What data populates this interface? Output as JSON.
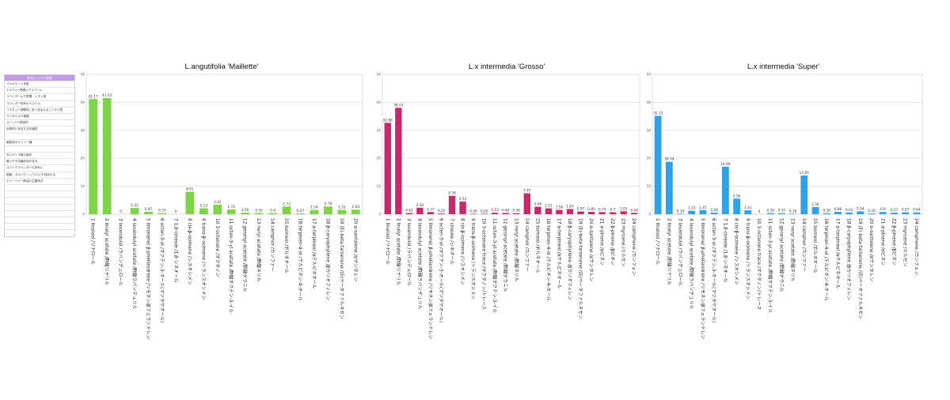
{
  "legend_panel": {
    "header": "成分について説明",
    "rows": [
      "ベルガモット系香",
      "エステル+酢酸+アルコール",
      "ラベンダーより柑橘、レモン香",
      "ラベンダー特有のエステル",
      "リモネン+柑橘系に多く含まれることから柑",
      "マツタケより樹脂",
      "スーッ!!?!感覚的",
      "伝統的に存在する抗菌性",
      "",
      "脂肪族のケトン一種",
      "",
      "甘いローズ様の香気",
      "軽いやや抗菌作用がある",
      "スパイクラベンダーの多めに",
      "樹脂、ガルバナシュワ(?)とも呼ばれる",
      "ティーツリー精油の主要成分",
      "",
      "",
      "",
      "",
      "",
      "",
      "",
      ""
    ]
  },
  "colors": {
    "maillette": "#7ed348",
    "grosso": "#c8286c",
    "super": "#2fa2e8"
  },
  "chart_data": [
    {
      "type": "bar",
      "title": "L.angutifolia 'Maillette'",
      "ylim": [
        0,
        50
      ],
      "yticks": [
        0,
        10,
        20,
        30,
        40,
        50
      ],
      "categories": [
        "1 linalool /リナロール",
        "2 linalyl acetate /酢酸リナリル",
        "3 lavandulol /ラバンデュロール",
        "4 lavandulyl acetate /酢酸ラバンデュリル",
        "5 limonene/ β-phellandrene /リモネン/βフェランドレン",
        "6 octen-3-ol /オクテン-3-オール(マツタケオール)",
        "7 1,8-cineole /1,8-シネオール",
        "8 cis-β-ocimene /シスオシメン",
        "9 trans-β-ocimene /トランスオシメン",
        "10 3-octanone /オクタノン",
        "11 octen-3-yl acetate /酢酸オクテン-3-イル",
        "12 geranyl acetate /酢酸ゲラニル",
        "13 neryl acetate /酢酸ネリル",
        "14 camphor /カンファー",
        "15 borneol /ボルネオール",
        "16 terpinen-4-ol /テルピネン-4-オール",
        "17 α-terpineol /αテルピネオール",
        "18 β-caryophyllene /βカリオフィレン",
        "19 (E)-beta-farsenene /(E)ベータファルネセン",
        "20 α-santalene /αサンタレン"
      ],
      "values": [
        41.17,
        41.55,
        0,
        2.22,
        0.87,
        0.37,
        0,
        8.01,
        2.13,
        3.42,
        1.72,
        0.56,
        0.42,
        0.4,
        2.73,
        0.27,
        1.54,
        2.78,
        1.55,
        1.63
      ],
      "labels": [
        "41.17",
        "41.55",
        "0",
        "2.22",
        "0.87",
        "0.37",
        "0",
        "8.01",
        "2.13",
        "3.42",
        "1.72",
        "0.56",
        "0.42",
        "0.4",
        "2.73",
        "0.27",
        "1.54",
        "2.78",
        "1.55",
        "1.63"
      ],
      "grid": true
    },
    {
      "type": "bar",
      "title": "L.x intermedia 'Grosso'",
      "ylim": [
        0,
        50
      ],
      "yticks": [
        0,
        10,
        20,
        30,
        40,
        50
      ],
      "categories": [
        "1 linalool /リナロール",
        "2 linalyl acetate /酢酸リナリル",
        "3 lavandulol /ラバンデュロール",
        "4 lavandulyl acetate /酢酸ラバンデュリル",
        "5 limonene/ β-phellandrene /リモネン/βフェランドレン",
        "6 octen-3-ol /オクテン-3-オール(マツタケオール)",
        "7 cineole /シネオール",
        "8 cis-β-ocimene /シスオシメン",
        "9 trans-β-ocimene /トランスオシメン",
        "10 3-octanone trace /オクタノン/トレース",
        "11 octen-3-yl acetate /酢酸オクテン-3-イル",
        "12 geranyl acetate /酢酸ゲラニル",
        "13 neryl acetate /酢酸ネリル",
        "14 camphor /カンファー",
        "15 borneol /ボルネオール",
        "16 terpinen-4-ol /テルピネン-4-オール",
        "17 α-terpineol /αテルピネオール",
        "18 β-caryophyllene /βカリオフィレン",
        "19 (E)-beta-farsenene /(E)ベータファルネセン",
        "20 α-santalene /αサンタレン",
        "21 α-pinene /αピネン",
        "22 β-pinene /βピネン",
        "23 myrcene /ミルセン",
        "24 camphene /カンフェン"
      ],
      "values": [
        32.66,
        38.03,
        0.42,
        2.33,
        0.77,
        0.25,
        6.58,
        4.51,
        0.04,
        0.02,
        0.53,
        0.46,
        0.36,
        7.47,
        2.66,
        2.11,
        1.56,
        1.87,
        0.97,
        0.85,
        0.74,
        0.7,
        1.05,
        0.49
      ],
      "labels": [
        "32.66",
        "38.03",
        "0.42",
        "2.33",
        "0.77",
        "0.25",
        "6.58",
        "4.51",
        "0.04",
        "0.02",
        "0.53",
        "0.46",
        "0.36",
        "7.47",
        "2.66",
        "2.11",
        "1.56",
        "1.87",
        "0.97",
        "0.85",
        "0.74",
        "0.7",
        "1.05",
        "0.49"
      ],
      "grid": true
    },
    {
      "type": "bar",
      "title": "L.x intermedia 'Super'",
      "ylim": [
        0,
        50
      ],
      "yticks": [
        0,
        10,
        20,
        30,
        40,
        50
      ],
      "categories": [
        "1 linalool /リナロール",
        "2 linalyl acetate /酢酸リナリル",
        "3 lavandulol /ラバンデュロール",
        "4 lavandulyl acetate /酢酸ラバンデュリル",
        "5 limonene/ β-phellandrene /リモネン/βフェランドレン",
        "6 octen-3-ol /オクテン-3-オール(マツタケオール)",
        "7 1,8-cineole /1,8-シネオール",
        "8 cis-β-ocimene /シスオシメン",
        "9 trans-β-ocimene /トランスオシメン",
        "10 3-octanone trace /オクタノン/トレース",
        "11 octen-3-yl acetate /酢酸オクテン-3-イル",
        "12 geranyl acetate /酢酸ゲラニル",
        "13 neryl acetate /酢酸ネリル",
        "14 camphor /カンファー",
        "15 borneol /ボルネオール",
        "16 terpinen-4-ol /テルピネン-4-オール",
        "17 α-terpineol /αテルピネオール",
        "18 β-caryophyllene /βカリオフィレン",
        "19 (E)-beta-farsenene /(E)ベータファルネセン",
        "20 α-santalene /αサンタレン",
        "21 α-pinene /αピネン",
        "22 β-pinene /βピネン",
        "23 myrcene /ミルセン",
        "24 camphene /カンフェン"
      ],
      "values": [
        35.15,
        18.74,
        0.14,
        1.23,
        1.47,
        0.58,
        16.99,
        5.56,
        1.41,
        0,
        0.39,
        0.37,
        0.16,
        13.85,
        2.54,
        0.36,
        0.86,
        0.63,
        1.04,
        0.26,
        0.8,
        0.57,
        0.67,
        0.64
      ],
      "labels": [
        "35.15",
        "18.74",
        "0.14",
        "1.23",
        "1.47",
        "0.58",
        "16.99",
        "5.56",
        "1.41",
        "0",
        "0.39",
        "0.37",
        "0.16",
        "13.85",
        "2.54",
        "0.36",
        "0.86",
        "0.63",
        "1.04",
        "0.26",
        "0.8",
        "0.57",
        "0.67",
        "0.64"
      ],
      "grid": true
    }
  ]
}
